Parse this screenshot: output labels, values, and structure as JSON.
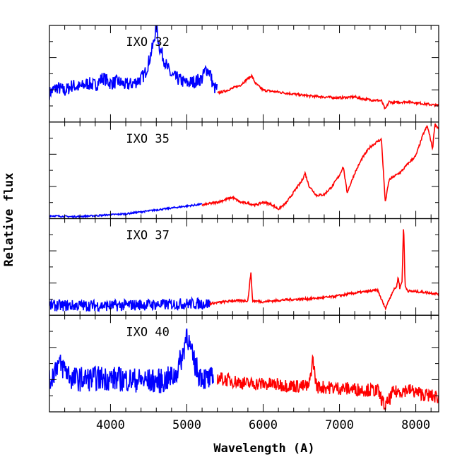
{
  "chart_data": {
    "type": "line",
    "xlabel": "Wavelength (A)",
    "ylabel": "Relative flux",
    "xlim": [
      3200,
      8300
    ],
    "x_ticks": [
      4000,
      5000,
      6000,
      7000,
      8000
    ],
    "x_tick_labels": [
      "4000",
      "5000",
      "6000",
      "7000",
      "8000"
    ],
    "grid": false,
    "colors": {
      "blue_arm": "#0000ff",
      "red_arm": "#ff0000",
      "frame": "#000000"
    },
    "panels": [
      {
        "label": "IXO 32",
        "ylim": [
          0,
          1
        ],
        "series": [
          {
            "arm": "blue",
            "noise": 0.07,
            "points": [
              [
                3200,
                0.3
              ],
              [
                3300,
                0.36
              ],
              [
                3400,
                0.32
              ],
              [
                3500,
                0.38
              ],
              [
                3600,
                0.36
              ],
              [
                3700,
                0.4
              ],
              [
                3800,
                0.38
              ],
              [
                3900,
                0.46
              ],
              [
                4000,
                0.4
              ],
              [
                4100,
                0.42
              ],
              [
                4200,
                0.38
              ],
              [
                4300,
                0.4
              ],
              [
                4400,
                0.45
              ],
              [
                4450,
                0.5
              ],
              [
                4500,
                0.62
              ],
              [
                4560,
                0.8
              ],
              [
                4600,
                1.0
              ],
              [
                4640,
                0.78
              ],
              [
                4700,
                0.65
              ],
              [
                4750,
                0.55
              ],
              [
                4800,
                0.48
              ],
              [
                4900,
                0.44
              ],
              [
                5000,
                0.4
              ],
              [
                5100,
                0.42
              ],
              [
                5200,
                0.45
              ],
              [
                5250,
                0.55
              ],
              [
                5300,
                0.52
              ],
              [
                5350,
                0.36
              ],
              [
                5400,
                0.34
              ]
            ]
          },
          {
            "arm": "red",
            "noise": 0.012,
            "points": [
              [
                5400,
                0.3
              ],
              [
                5500,
                0.32
              ],
              [
                5600,
                0.35
              ],
              [
                5700,
                0.38
              ],
              [
                5800,
                0.45
              ],
              [
                5850,
                0.48
              ],
              [
                5900,
                0.4
              ],
              [
                6000,
                0.33
              ],
              [
                6200,
                0.31
              ],
              [
                6400,
                0.29
              ],
              [
                6600,
                0.27
              ],
              [
                6800,
                0.26
              ],
              [
                7000,
                0.25
              ],
              [
                7200,
                0.26
              ],
              [
                7300,
                0.24
              ],
              [
                7400,
                0.23
              ],
              [
                7550,
                0.22
              ],
              [
                7600,
                0.13
              ],
              [
                7650,
                0.21
              ],
              [
                7700,
                0.2
              ],
              [
                7900,
                0.21
              ],
              [
                8000,
                0.2
              ],
              [
                8200,
                0.18
              ],
              [
                8300,
                0.17
              ]
            ]
          }
        ]
      },
      {
        "label": "IXO 35",
        "ylim": [
          0,
          1
        ],
        "series": [
          {
            "arm": "blue",
            "noise": 0.008,
            "points": [
              [
                3200,
                0.03
              ],
              [
                3500,
                0.02
              ],
              [
                3800,
                0.03
              ],
              [
                4000,
                0.04
              ],
              [
                4200,
                0.05
              ],
              [
                4500,
                0.08
              ],
              [
                4700,
                0.1
              ],
              [
                4900,
                0.12
              ],
              [
                5100,
                0.14
              ],
              [
                5200,
                0.15
              ]
            ]
          },
          {
            "arm": "red",
            "noise": 0.012,
            "points": [
              [
                5200,
                0.14
              ],
              [
                5400,
                0.17
              ],
              [
                5600,
                0.22
              ],
              [
                5700,
                0.17
              ],
              [
                5800,
                0.16
              ],
              [
                5900,
                0.14
              ],
              [
                6000,
                0.17
              ],
              [
                6100,
                0.15
              ],
              [
                6200,
                0.1
              ],
              [
                6300,
                0.16
              ],
              [
                6450,
                0.33
              ],
              [
                6500,
                0.38
              ],
              [
                6550,
                0.47
              ],
              [
                6600,
                0.34
              ],
              [
                6700,
                0.24
              ],
              [
                6800,
                0.25
              ],
              [
                6900,
                0.33
              ],
              [
                7000,
                0.45
              ],
              [
                7050,
                0.54
              ],
              [
                7100,
                0.27
              ],
              [
                7200,
                0.47
              ],
              [
                7300,
                0.63
              ],
              [
                7400,
                0.74
              ],
              [
                7500,
                0.8
              ],
              [
                7550,
                0.82
              ],
              [
                7600,
                0.17
              ],
              [
                7650,
                0.4
              ],
              [
                7700,
                0.43
              ],
              [
                7800,
                0.48
              ],
              [
                7900,
                0.57
              ],
              [
                8000,
                0.65
              ],
              [
                8100,
                0.88
              ],
              [
                8150,
                0.96
              ],
              [
                8200,
                0.8
              ],
              [
                8220,
                0.72
              ],
              [
                8250,
                0.98
              ],
              [
                8300,
                0.93
              ]
            ]
          }
        ]
      },
      {
        "label": "IXO 37",
        "ylim": [
          0,
          1
        ],
        "series": [
          {
            "arm": "blue",
            "noise": 0.06,
            "points": [
              [
                3200,
                0.1
              ],
              [
                3500,
                0.1
              ],
              [
                3800,
                0.1
              ],
              [
                4100,
                0.1
              ],
              [
                4400,
                0.11
              ],
              [
                4700,
                0.11
              ],
              [
                5000,
                0.12
              ],
              [
                5300,
                0.12
              ]
            ]
          },
          {
            "arm": "red",
            "noise": 0.012,
            "points": [
              [
                5300,
                0.12
              ],
              [
                5600,
                0.15
              ],
              [
                5800,
                0.15
              ],
              [
                5840,
                0.45
              ],
              [
                5860,
                0.15
              ],
              [
                6000,
                0.14
              ],
              [
                6300,
                0.16
              ],
              [
                6600,
                0.17
              ],
              [
                6900,
                0.19
              ],
              [
                7200,
                0.23
              ],
              [
                7500,
                0.26
              ],
              [
                7600,
                0.07
              ],
              [
                7700,
                0.25
              ],
              [
                7750,
                0.3
              ],
              [
                7770,
                0.4
              ],
              [
                7790,
                0.28
              ],
              [
                7820,
                0.35
              ],
              [
                7840,
                0.95
              ],
              [
                7860,
                0.3
              ],
              [
                7900,
                0.25
              ],
              [
                8100,
                0.24
              ],
              [
                8300,
                0.22
              ]
            ]
          }
        ]
      },
      {
        "label": "IXO 40",
        "ylim": [
          0,
          1
        ],
        "series": [
          {
            "arm": "blue",
            "noise": 0.13,
            "points": [
              [
                3200,
                0.3
              ],
              [
                3300,
                0.5
              ],
              [
                3400,
                0.45
              ],
              [
                3500,
                0.34
              ],
              [
                3700,
                0.34
              ],
              [
                3900,
                0.35
              ],
              [
                4100,
                0.34
              ],
              [
                4300,
                0.33
              ],
              [
                4500,
                0.32
              ],
              [
                4700,
                0.32
              ],
              [
                4850,
                0.38
              ],
              [
                4950,
                0.6
              ],
              [
                5000,
                0.84
              ],
              [
                5050,
                0.62
              ],
              [
                5150,
                0.4
              ],
              [
                5250,
                0.34
              ],
              [
                5350,
                0.33
              ]
            ]
          },
          {
            "arm": "red",
            "noise": 0.07,
            "points": [
              [
                5400,
                0.35
              ],
              [
                5600,
                0.32
              ],
              [
                5800,
                0.29
              ],
              [
                6000,
                0.29
              ],
              [
                6200,
                0.28
              ],
              [
                6400,
                0.27
              ],
              [
                6600,
                0.26
              ],
              [
                6650,
                0.55
              ],
              [
                6700,
                0.26
              ],
              [
                6900,
                0.25
              ],
              [
                7100,
                0.24
              ],
              [
                7300,
                0.23
              ],
              [
                7500,
                0.22
              ],
              [
                7600,
                0.05
              ],
              [
                7700,
                0.2
              ],
              [
                7900,
                0.23
              ],
              [
                8100,
                0.18
              ],
              [
                8300,
                0.15
              ]
            ]
          }
        ]
      }
    ]
  }
}
